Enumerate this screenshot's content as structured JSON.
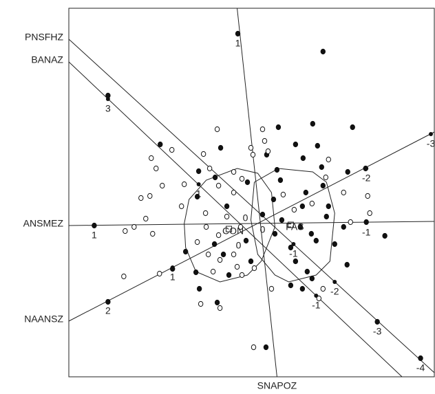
{
  "chart_data": {
    "type": "biplot",
    "xlim": [
      -275,
      257
    ],
    "ylim": [
      -220,
      316
    ],
    "series": [
      {
        "name": "FAS",
        "marker": "filled",
        "color": "#111111",
        "x": [
          -29,
          95,
          -218,
          30,
          80,
          138,
          55,
          87,
          -142,
          -54,
          13,
          66,
          28,
          -86,
          93,
          157,
          -62,
          33,
          -15,
          70,
          131,
          95,
          23,
          65,
          103,
          100,
          -45,
          -88,
          7,
          62,
          125,
          158,
          25,
          78,
          -238,
          -17,
          48,
          85,
          185,
          -63,
          -105,
          55,
          112,
          130,
          -124,
          -90,
          -50,
          -10,
          -42,
          48,
          65,
          79,
          -59,
          -85,
          -218,
          174,
          12,
          237,
          72,
          35
        ],
        "y": [
          279,
          253,
          189,
          143,
          148,
          143,
          118,
          116,
          118,
          113,
          103,
          98,
          81,
          79,
          85,
          83,
          70,
          66,
          63,
          48,
          78,
          58,
          38,
          28,
          28,
          13,
          28,
          42,
          16,
          -2,
          -2,
          5,
          -12,
          -12,
          0,
          -22,
          -32,
          -22,
          -15,
          -27,
          -38,
          -52,
          -27,
          -57,
          -63,
          -68,
          -42,
          -52,
          -72,
          -87,
          -92,
          -77,
          -112,
          -92,
          -111,
          -140,
          -177,
          -193,
          -67,
          8
        ],
        "hull": {
          "x": [
            -5,
            30,
            80,
            100,
            112,
            105,
            85,
            45,
            25,
            0,
            -10
          ],
          "y": [
            63,
            83,
            78,
            63,
            18,
            -52,
            -72,
            -82,
            -72,
            -42,
            8
          ]
        },
        "centroid": {
          "x": 48,
          "y": 1
        }
      },
      {
        "name": "CON",
        "marker": "open",
        "color": "#111111",
        "x": [
          -59,
          7,
          15,
          -10,
          -125,
          -155,
          -148,
          -107,
          -139,
          -170,
          -157,
          -70,
          -35,
          -23,
          -35,
          -57,
          -111,
          -76,
          -45,
          -163,
          -180,
          -193,
          -153,
          -75,
          -25,
          -88,
          -57,
          -72,
          -35,
          -30,
          -5,
          -65,
          -195,
          -143,
          -55,
          -83,
          -55,
          -23,
          95,
          89,
          20,
          163,
          135,
          103,
          99,
          125,
          160,
          37,
          53,
          79,
          -6,
          -7,
          10,
          -79
        ],
        "y": [
          140,
          140,
          108,
          113,
          110,
          98,
          83,
          60,
          58,
          40,
          43,
          83,
          78,
          68,
          48,
          58,
          28,
          18,
          13,
          10,
          -2,
          -8,
          -12,
          -2,
          -2,
          -24,
          -14,
          -42,
          -42,
          -60,
          -62,
          -67,
          -74,
          -70,
          -50,
          -114,
          -120,
          -72,
          -92,
          -106,
          -92,
          18,
          5,
          96,
          70,
          48,
          43,
          45,
          23,
          32,
          -177,
          103,
          123,
          104
        ],
        "hull": {
          "x": [
            -107,
            -100,
            -75,
            -30,
            0,
            20,
            25,
            5,
            -15,
            -55,
            -90,
            -105
          ],
          "y": [
            3,
            38,
            66,
            83,
            76,
            48,
            -2,
            -52,
            -72,
            -82,
            -67,
            -32
          ]
        },
        "centroid": {
          "x": -42,
          "y": -5
        }
      }
    ],
    "biplot_axes": [
      {
        "name": "SNAPOZ",
        "label_side": "bottom",
        "x": [
          -30,
          28
        ],
        "y": [
          316,
          -220
        ],
        "ticks": [
          {
            "value": 1,
            "x": -29,
            "y": 279
          }
        ]
      },
      {
        "name": "PNSFHZ",
        "label_side": "left",
        "x": [
          -275,
          257
        ],
        "y": [
          271,
          -214
        ],
        "ticks": [
          {
            "value": -1,
            "x": 52,
            "y": -27
          },
          {
            "value": -2,
            "x": 112,
            "y": -82
          },
          {
            "value": -3,
            "x": 174,
            "y": -140
          },
          {
            "value": -4,
            "x": 237,
            "y": -193
          }
        ]
      },
      {
        "name": "BANAZ",
        "label_side": "left",
        "x": [
          -275,
          210
        ],
        "y": [
          238,
          -220
        ],
        "ticks": [
          {
            "value": 3,
            "x": -218,
            "y": 184
          },
          {
            "value": 1,
            "x": -86,
            "y": 60
          },
          {
            "value": -1,
            "x": 85,
            "y": -102
          }
        ]
      },
      {
        "name": "ANSMEZ",
        "label_side": "left",
        "x": [
          -275,
          257
        ],
        "y": [
          0,
          6
        ],
        "ticks": [
          {
            "value": 1,
            "x": -238,
            "y": 0
          },
          {
            "value": -1,
            "x": 158,
            "y": 4
          }
        ]
      },
      {
        "name": "NAANSZ",
        "label_side": "left",
        "x": [
          -275,
          257
        ],
        "y": [
          -139,
          136
        ],
        "ticks": [
          {
            "value": 2,
            "x": -218,
            "y": -110
          },
          {
            "value": 1,
            "x": -124,
            "y": -61
          },
          {
            "value": -2,
            "x": 158,
            "y": 83
          },
          {
            "value": -3,
            "x": 252,
            "y": 133
          }
        ]
      }
    ],
    "annotations": [
      {
        "text": "0",
        "x": -18,
        "y": 10
      },
      {
        "text": "0",
        "x": -28,
        "y": -30
      },
      {
        "text": "0",
        "x": 7,
        "y": -7
      }
    ]
  }
}
